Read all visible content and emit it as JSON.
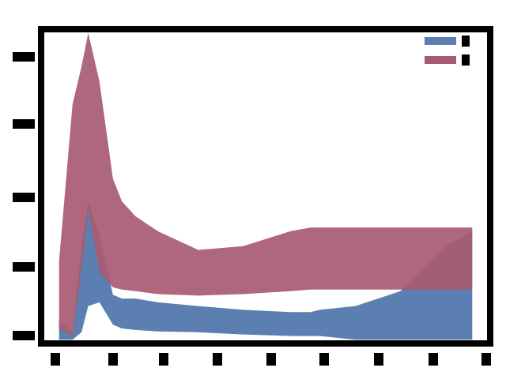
{
  "chart_data": {
    "type": "area",
    "title": "",
    "xlabel": "",
    "ylabel": "",
    "x_ticks": [
      "",
      "",
      "",
      "",
      "",
      "",
      "",
      "",
      "",
      ""
    ],
    "y_ticks": [
      "",
      "",
      "",
      "",
      ""
    ],
    "xlim": [
      0,
      1
    ],
    "ylim": [
      0,
      4.2
    ],
    "grid": false,
    "legend_position": "top-right",
    "x": [
      0.04,
      0.07,
      0.09,
      0.105,
      0.13,
      0.16,
      0.18,
      0.21,
      0.26,
      0.35,
      0.45,
      0.555,
      0.6,
      0.62,
      0.7,
      0.8,
      0.9,
      0.96
    ],
    "series": [
      {
        "name": "",
        "color": "#5a7fb0",
        "lower": [
          0.05,
          0.05,
          0.15,
          0.5,
          0.55,
          0.25,
          0.2,
          0.18,
          0.16,
          0.15,
          0.12,
          0.1,
          0.1,
          0.1,
          0.05,
          0.05,
          0.05,
          0.05
        ],
        "upper": [
          0.3,
          0.15,
          1.3,
          1.9,
          1.45,
          0.65,
          0.6,
          0.6,
          0.55,
          0.5,
          0.45,
          0.42,
          0.42,
          0.45,
          0.5,
          0.7,
          1.3,
          1.5
        ]
      },
      {
        "name": "",
        "color": "#a85a72",
        "lower": [
          0.2,
          0.1,
          1.0,
          1.8,
          0.95,
          0.75,
          0.72,
          0.7,
          0.66,
          0.64,
          0.66,
          0.7,
          0.72,
          0.72,
          0.72,
          0.72,
          0.72,
          0.72
        ],
        "upper": [
          1.1,
          3.2,
          3.7,
          4.15,
          3.5,
          2.2,
          1.9,
          1.7,
          1.5,
          1.25,
          1.3,
          1.5,
          1.55,
          1.55,
          1.55,
          1.55,
          1.55,
          1.55
        ]
      }
    ]
  }
}
